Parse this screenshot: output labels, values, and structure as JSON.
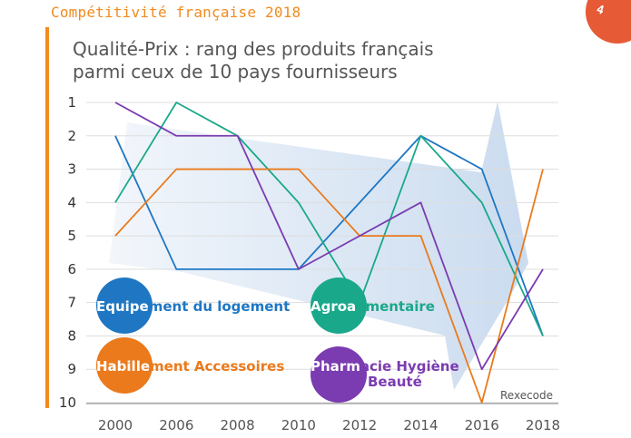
{
  "header": {
    "title": "Compétitivité française 2018",
    "badge_glyph": "4"
  },
  "colors": {
    "accent": "#f28a1e",
    "badge": "#e65a36",
    "Equipement du logement": "#1f77c4",
    "Agroalimentaire": "#1aa88a",
    "Habillement Accessoires": "#ea7a1c",
    "Pharmacie Hygiène Beauté": "#7a3cb0"
  },
  "chart_data": {
    "type": "line",
    "title_lines": [
      "Qualité-Prix : rang des produits français",
      "parmi ceux de 10 pays fournisseurs"
    ],
    "x": [
      "2000",
      "2006",
      "2008",
      "2010",
      "2012",
      "2014",
      "2016",
      "2018"
    ],
    "y_ticks": [
      "1",
      "2",
      "3",
      "4",
      "5",
      "6",
      "7",
      "8",
      "9",
      "10"
    ],
    "ylim": [
      1,
      10
    ],
    "y_inverted": true,
    "grid": "horizontal",
    "source": "Rexecode",
    "series": [
      {
        "name": "Equipement du logement",
        "values": [
          2,
          6,
          6,
          6,
          4,
          2,
          3,
          8
        ]
      },
      {
        "name": "Agroalimentaire",
        "values": [
          4,
          1,
          2,
          4,
          7,
          2,
          4,
          8
        ]
      },
      {
        "name": "Habillement Accessoires",
        "values": [
          5,
          3,
          3,
          3,
          5,
          5,
          10,
          3
        ]
      },
      {
        "name": "Pharmacie Hygiène Beauté",
        "values": [
          1,
          2,
          2,
          6,
          5,
          4,
          9,
          6
        ]
      }
    ],
    "legend": [
      {
        "lead": "Equipe",
        "rest": "ment du logement",
        "series": "Equipement du logement"
      },
      {
        "lead": "Agroa",
        "rest": "limentaire",
        "series": "Agroalimentaire"
      },
      {
        "lead": "Habille",
        "rest": "ment Accessoires",
        "series": "Habillement Accessoires"
      },
      {
        "lead": "Pharm",
        "rest": "acie Hygiène",
        "rest2": "Beauté",
        "series": "Pharmacie Hygiène Beauté"
      }
    ]
  }
}
